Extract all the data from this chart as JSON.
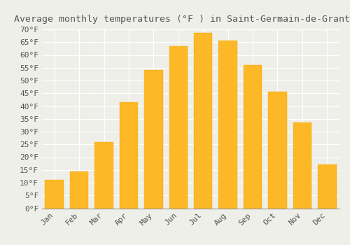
{
  "title": "Average monthly temperatures (°F ) in Saint-Germain-de-Grantham",
  "months": [
    "Jan",
    "Feb",
    "Mar",
    "Apr",
    "May",
    "Jun",
    "Jul",
    "Aug",
    "Sep",
    "Oct",
    "Nov",
    "Dec"
  ],
  "values": [
    11,
    14.5,
    26,
    41.5,
    54,
    63.5,
    68.5,
    65.5,
    56,
    45.5,
    33.5,
    17
  ],
  "bar_color": "#FDB827",
  "bar_edge_color": "#F5A800",
  "background_color": "#EFEFEA",
  "grid_color": "#FFFFFF",
  "text_color": "#555555",
  "ylim": [
    0,
    70
  ],
  "yticks": [
    0,
    5,
    10,
    15,
    20,
    25,
    30,
    35,
    40,
    45,
    50,
    55,
    60,
    65,
    70
  ],
  "title_fontsize": 9.5,
  "tick_fontsize": 8,
  "font_family": "monospace",
  "bar_width": 0.75
}
